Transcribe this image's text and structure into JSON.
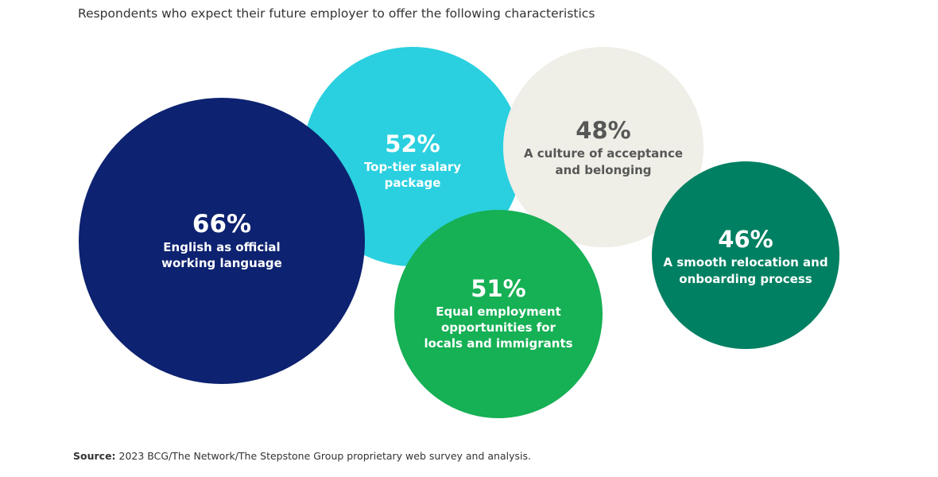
{
  "chart_data": {
    "type": "bubble",
    "subtitle": "Respondents who expect their future employer to offer the following characteristics",
    "unit": "%",
    "items": [
      {
        "value": 66,
        "value_label": "66%",
        "label_lines": [
          "English as official",
          "working language"
        ],
        "color": "#0d2270",
        "text_color": "#ffffff"
      },
      {
        "value": 52,
        "value_label": "52%",
        "label_lines": [
          "Top-tier salary",
          "package"
        ],
        "color": "#2ad0df",
        "text_color": "#ffffff"
      },
      {
        "value": 48,
        "value_label": "48%",
        "label_lines": [
          "A culture of acceptance",
          "and belonging"
        ],
        "color": "#efeee7",
        "text_color": "#575757"
      },
      {
        "value": 51,
        "value_label": "51%",
        "label_lines": [
          "Equal employment",
          "opportunities for",
          "locals and immigrants"
        ],
        "color": "#16b055",
        "text_color": "#ffffff"
      },
      {
        "value": 46,
        "value_label": "46%",
        "label_lines": [
          "A smooth relocation and",
          "onboarding process"
        ],
        "color": "#008062",
        "text_color": "#ffffff"
      }
    ]
  },
  "footer": {
    "source_prefix": "Source:",
    "source_text": " 2023 BCG/The Network/The Stepstone Group proprietary web survey and analysis."
  }
}
